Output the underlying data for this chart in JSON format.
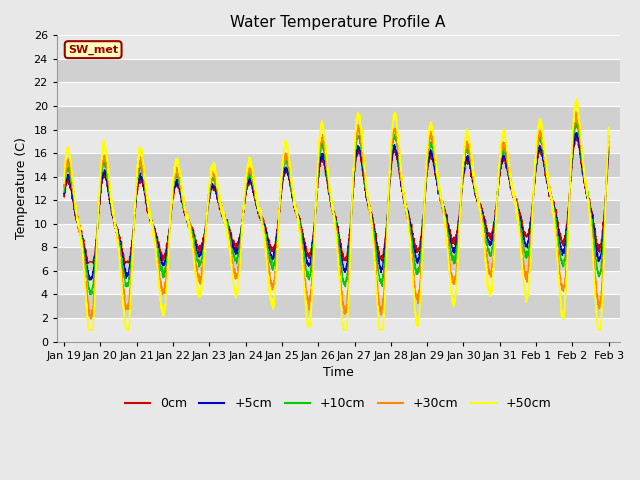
{
  "title": "Water Temperature Profile A",
  "xlabel": "Time",
  "ylabel": "Temperature (C)",
  "ylim": [
    0,
    26
  ],
  "background_color": "#d8d8d8",
  "fig_color": "#e8e8e8",
  "grid_color": "#ffffff",
  "legend_label": "SW_met",
  "series": [
    "0cm",
    "+5cm",
    "+10cm",
    "+30cm",
    "+50cm"
  ],
  "series_colors": [
    "#cc0000",
    "#0000cc",
    "#00cc00",
    "#ff8800",
    "#ffff00"
  ],
  "series_lw": [
    1.0,
    1.0,
    1.0,
    1.0,
    1.2
  ],
  "tick_labels": [
    "Jan 19",
    "Jan 20",
    "Jan 21",
    "Jan 22",
    "Jan 23",
    "Jan 24",
    "Jan 25",
    "Jan 26",
    "Jan 27",
    "Jan 28",
    "Jan 29",
    "Jan 30",
    "Jan 31",
    "Feb 1",
    "Feb 2",
    "Feb 3"
  ],
  "tick_positions": [
    0,
    1,
    2,
    3,
    4,
    5,
    6,
    7,
    8,
    9,
    10,
    11,
    12,
    13,
    14,
    15
  ],
  "band_colors": [
    "#e8e8e8",
    "#d0d0d0"
  ]
}
